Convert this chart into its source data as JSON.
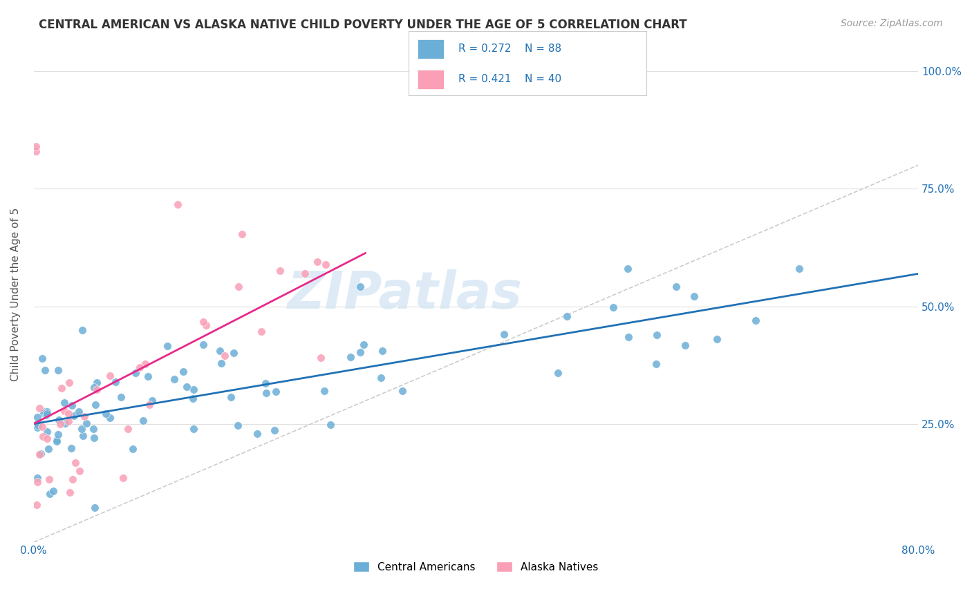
{
  "title": "CENTRAL AMERICAN VS ALASKA NATIVE CHILD POVERTY UNDER THE AGE OF 5 CORRELATION CHART",
  "source": "Source: ZipAtlas.com",
  "ylabel": "Child Poverty Under the Age of 5",
  "xlim": [
    0.0,
    0.8
  ],
  "ylim": [
    0.0,
    1.05
  ],
  "x_tick_positions": [
    0.0,
    0.1,
    0.2,
    0.3,
    0.4,
    0.5,
    0.6,
    0.7,
    0.8
  ],
  "x_tick_labels": [
    "0.0%",
    "",
    "",
    "",
    "",
    "",
    "",
    "",
    "80.0%"
  ],
  "y_tick_positions": [
    0.0,
    0.25,
    0.5,
    0.75,
    1.0
  ],
  "y_tick_labels_right": [
    "",
    "25.0%",
    "50.0%",
    "75.0%",
    "100.0%"
  ],
  "blue_color": "#6baed6",
  "pink_color": "#fa9fb5",
  "blue_line_color": "#2171b5",
  "pink_line_color": "#e7298a",
  "diag_line_color": "#cccccc",
  "watermark": "ZIPatlas",
  "legend_R1": "R = 0.272",
  "legend_N1": "N = 88",
  "legend_R2": "R = 0.421",
  "legend_N2": "N = 40",
  "background_color": "#ffffff",
  "grid_color": "#e0e0e0",
  "label_blue": "Central Americans",
  "label_pink": "Alaska Natives"
}
